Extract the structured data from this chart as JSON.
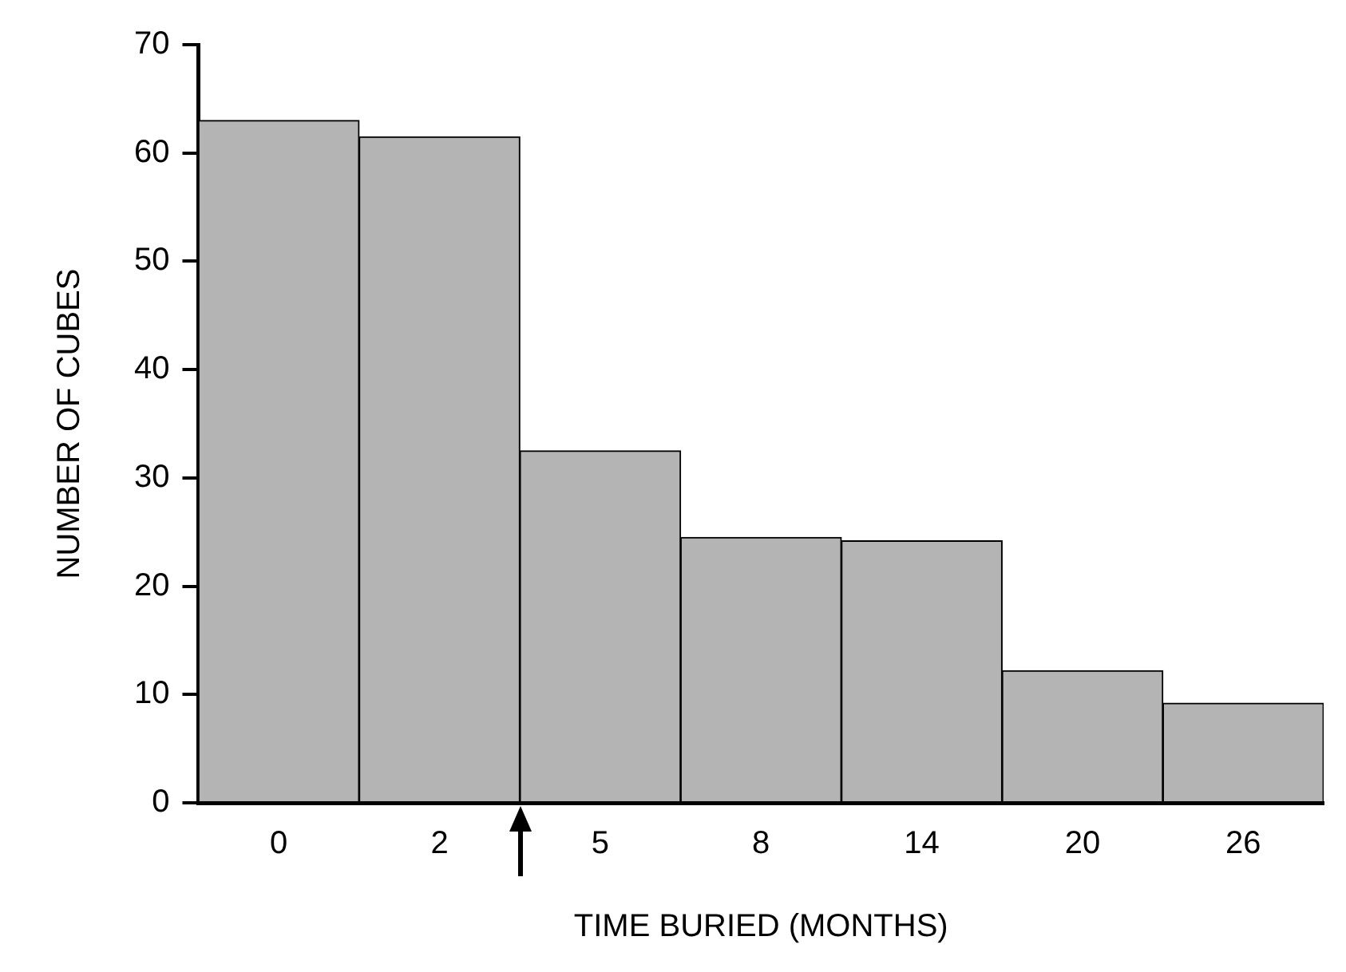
{
  "chart_data": {
    "type": "bar",
    "xlabel": "TIME BURIED (MONTHS)",
    "ylabel": "NUMBER OF CUBES",
    "categories": [
      "0",
      "2",
      "5",
      "8",
      "14",
      "20",
      "26"
    ],
    "values": [
      63,
      61.5,
      32.5,
      24.5,
      24.2,
      12.2,
      9.2
    ],
    "color": "#b4b4b4",
    "ylim": [
      0,
      70
    ],
    "yticks": [
      0,
      10,
      20,
      30,
      40,
      50,
      60,
      70
    ],
    "grid": false,
    "legend": false
  }
}
